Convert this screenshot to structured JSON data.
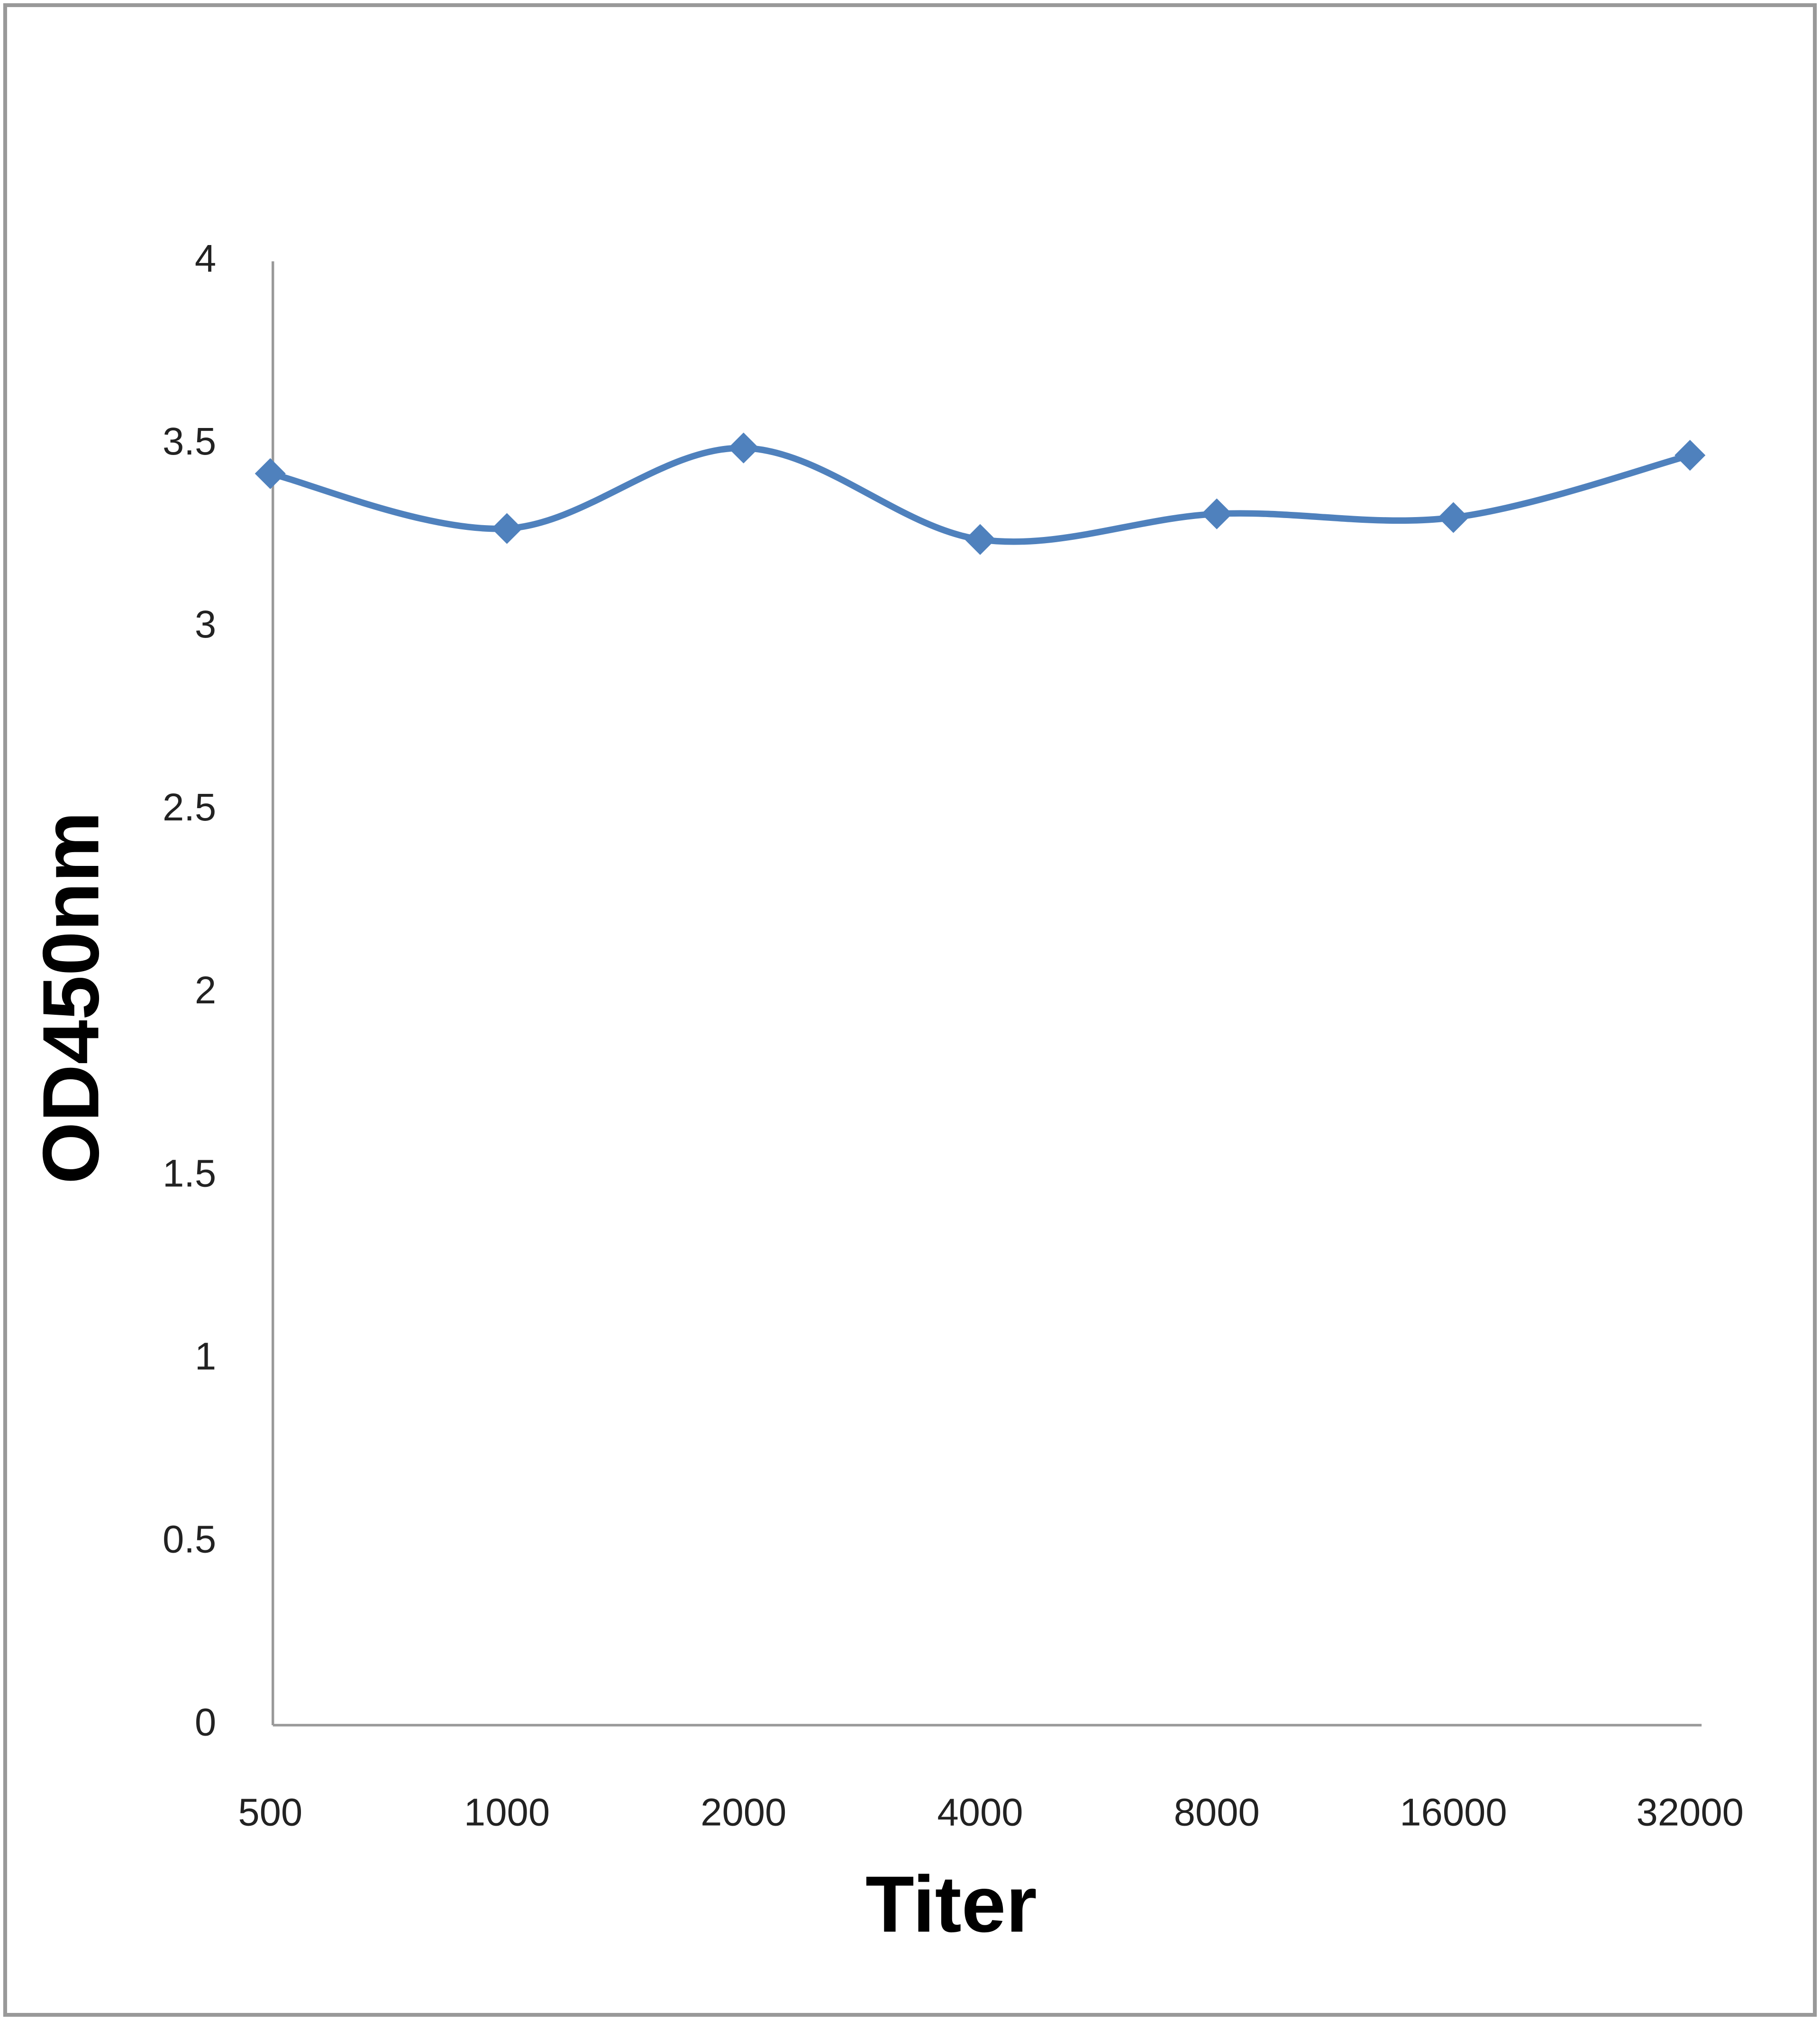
{
  "chart_data": {
    "type": "line",
    "categories": [
      "500",
      "1000",
      "2000",
      "4000",
      "8000",
      "16000",
      "32000"
    ],
    "series": [
      {
        "name": "OD450nm",
        "color": "#4f81bd",
        "values": [
          3.42,
          3.27,
          3.49,
          3.24,
          3.31,
          3.3,
          3.47
        ]
      }
    ],
    "ylim": [
      0,
      4
    ],
    "yticks": [
      0,
      0.5,
      1,
      1.5,
      2,
      2.5,
      3,
      3.5,
      4
    ],
    "x_label": "Titer",
    "y_label": "OD450nm",
    "grid": false,
    "smooth": true,
    "marker": "diamond"
  }
}
